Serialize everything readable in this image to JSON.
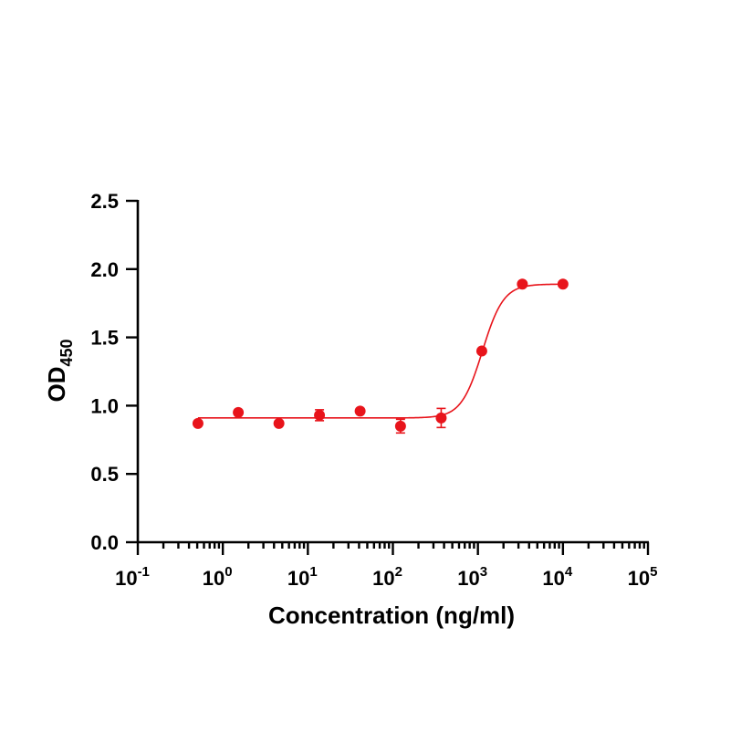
{
  "chart_data": {
    "type": "scatter",
    "xlabel": "Concentration (ng/ml)",
    "ylabel": {
      "main": "OD",
      "sub": "450"
    },
    "x_scale": "log10",
    "xlim": [
      0.1,
      100000
    ],
    "ylim": [
      0,
      2.5
    ],
    "grid": false,
    "color": "#e8141b",
    "x_tick_labels": [
      {
        "base": "10",
        "exp": "-1",
        "value": 0.1
      },
      {
        "base": "10",
        "exp": "0",
        "value": 1
      },
      {
        "base": "10",
        "exp": "1",
        "value": 10
      },
      {
        "base": "10",
        "exp": "2",
        "value": 100
      },
      {
        "base": "10",
        "exp": "3",
        "value": 1000
      },
      {
        "base": "10",
        "exp": "4",
        "value": 10000
      },
      {
        "base": "10",
        "exp": "5",
        "value": 100000
      }
    ],
    "y_tick_labels": [
      "0.0",
      "0.5",
      "1.0",
      "1.5",
      "2.0",
      "2.5"
    ],
    "y_ticks": [
      0,
      0.5,
      1.0,
      1.5,
      2.0,
      2.5
    ],
    "series": [
      {
        "points": [
          {
            "x": 0.51,
            "y": 0.87,
            "err": 0.0
          },
          {
            "x": 1.52,
            "y": 0.95,
            "err": 0.0
          },
          {
            "x": 4.57,
            "y": 0.87,
            "err": 0.0
          },
          {
            "x": 13.7,
            "y": 0.93,
            "err": 0.04
          },
          {
            "x": 41.2,
            "y": 0.96,
            "err": 0.0
          },
          {
            "x": 123,
            "y": 0.85,
            "err": 0.05
          },
          {
            "x": 370,
            "y": 0.91,
            "err": 0.07
          },
          {
            "x": 1111,
            "y": 1.4,
            "err": 0.0
          },
          {
            "x": 3333,
            "y": 1.89,
            "err": 0.0
          },
          {
            "x": 10000,
            "y": 1.89,
            "err": 0.0
          }
        ],
        "fit": {
          "bottom": 0.91,
          "top": 1.89,
          "ec50": 1130,
          "hill": 3.5,
          "x_from": 0.51,
          "x_to": 10000
        }
      }
    ]
  }
}
